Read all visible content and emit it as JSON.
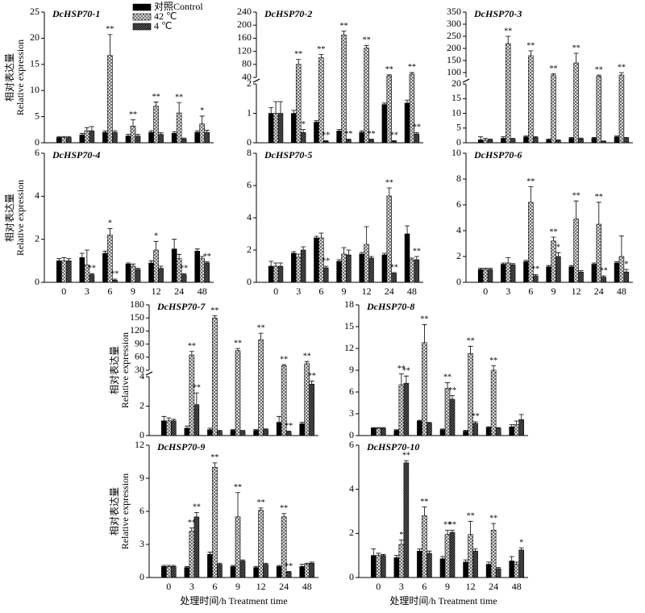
{
  "legend": [
    {
      "name": "对照Control",
      "color": "#000000",
      "pattern": "solid"
    },
    {
      "name": "42 ℃",
      "color": "#888888",
      "pattern": "crosshatch"
    },
    {
      "name": "4 ℃",
      "color": "#333333",
      "pattern": "dense"
    }
  ],
  "chart_data": [
    {
      "type": "bar",
      "title": "DcHSP70-1",
      "ylabel": "相对表达量",
      "ylabel2": "Relative expression",
      "categories": [
        null,
        null,
        null,
        null,
        null,
        null,
        null
      ],
      "ylim": [
        0,
        25
      ],
      "yticks": [
        0,
        5,
        10,
        15,
        20,
        25
      ],
      "series": [
        {
          "values": [
            1,
            1.5,
            2,
            1.3,
            2,
            1.8,
            2
          ],
          "errors": [
            0.2,
            0.3,
            0.3,
            0.3,
            0.3,
            0.3,
            0.3
          ],
          "stars": [
            null,
            null,
            null,
            null,
            null,
            null,
            null
          ]
        },
        {
          "values": [
            1,
            2.3,
            16.7,
            3.2,
            7,
            5.7,
            3.6
          ],
          "errors": [
            0.2,
            0.6,
            4,
            1.2,
            0.8,
            2,
            1.5
          ],
          "stars": [
            null,
            null,
            "**",
            "**",
            "**",
            "**",
            "*"
          ]
        },
        {
          "values": [
            1,
            2.3,
            2,
            1.3,
            1.6,
            0.7,
            2
          ],
          "errors": [
            0.2,
            0.8,
            0.3,
            0.3,
            0.3,
            0.2,
            0.4
          ],
          "stars": [
            null,
            null,
            null,
            null,
            null,
            null,
            null
          ]
        }
      ]
    },
    {
      "type": "bar",
      "title": "DcHSP70-2",
      "categories": [
        null,
        null,
        null,
        null,
        null,
        null,
        null
      ],
      "ylim": [
        0,
        2
      ],
      "yticks": [
        0,
        1,
        2
      ],
      "break": {
        "ylim": [
          40,
          240
        ],
        "yticks": [
          40,
          80,
          120,
          160,
          200,
          240
        ]
      },
      "series": [
        {
          "values": [
            1,
            1,
            0.7,
            0.4,
            0.35,
            1.3,
            1.35
          ],
          "errors": [
            0.2,
            0.1,
            0.05,
            0.05,
            0.05,
            0.05,
            0.1
          ],
          "stars": [
            null,
            null,
            null,
            null,
            null,
            null,
            null
          ]
        },
        {
          "values": [
            1,
            80,
            100,
            170,
            130,
            45,
            50
          ],
          "errors": [
            0.4,
            15,
            10,
            12,
            8,
            3,
            5
          ],
          "stars": [
            null,
            "**",
            "**",
            "**",
            "**",
            "**",
            "**"
          ]
        },
        {
          "values": [
            1,
            0.35,
            0.05,
            0.1,
            0.1,
            0.05,
            0.3
          ],
          "errors": [
            0.4,
            0.1,
            0.02,
            0.02,
            0.02,
            0.02,
            0.05
          ],
          "stars": [
            null,
            "*",
            "**",
            "**",
            "**",
            "**",
            "**"
          ]
        }
      ]
    },
    {
      "type": "bar",
      "title": "DcHSP70-3",
      "categories": [
        null,
        null,
        null,
        null,
        null,
        null,
        null
      ],
      "ylim": [
        0,
        20
      ],
      "yticks": [
        0,
        5,
        10,
        15,
        20
      ],
      "break": {
        "ylim": [
          80,
          350
        ],
        "yticks": [
          100,
          150,
          200,
          250,
          300,
          350
        ]
      },
      "series": [
        {
          "values": [
            1,
            1.5,
            2,
            1,
            1.5,
            1.5,
            2
          ],
          "errors": [
            1,
            0.5,
            0.3,
            0.3,
            0.3,
            0.3,
            0.3
          ],
          "stars": [
            null,
            null,
            null,
            null,
            null,
            null,
            null
          ]
        },
        {
          "values": [
            1,
            220,
            170,
            90,
            140,
            85,
            90
          ],
          "errors": [
            0.5,
            30,
            20,
            5,
            40,
            5,
            10
          ],
          "stars": [
            null,
            "**",
            "**",
            "**",
            "**",
            "**",
            "**"
          ]
        },
        {
          "values": [
            1,
            1.2,
            1.8,
            0.8,
            1.3,
            0.5,
            1.5
          ],
          "errors": [
            0.3,
            0.3,
            0.3,
            0.2,
            0.3,
            0.1,
            0.3
          ],
          "stars": [
            null,
            null,
            null,
            null,
            null,
            null,
            null
          ]
        }
      ]
    },
    {
      "type": "bar",
      "title": "DcHSP70-4",
      "ylabel": "相对表达量",
      "ylabel2": "Relative expression",
      "categories": [
        "0",
        "3",
        "6",
        "9",
        "12",
        "24",
        "48"
      ],
      "ylim": [
        0,
        6
      ],
      "yticks": [
        0,
        2,
        4,
        6
      ],
      "series": [
        {
          "values": [
            1,
            1.15,
            1.35,
            0.85,
            0.9,
            1.55,
            1.45
          ],
          "errors": [
            0.1,
            0.2,
            0.1,
            0.05,
            0.1,
            0.45,
            0.1
          ],
          "stars": [
            null,
            null,
            null,
            null,
            null,
            null,
            null
          ]
        },
        {
          "values": [
            1,
            0.8,
            2.2,
            0.75,
            1.5,
            1.1,
            1.1
          ],
          "errors": [
            0.15,
            0.7,
            0.3,
            0.1,
            0.4,
            0.2,
            0.1
          ],
          "stars": [
            null,
            null,
            "*",
            null,
            "*",
            null,
            null
          ]
        },
        {
          "values": [
            1,
            0.35,
            0.1,
            0.6,
            0.65,
            0.35,
            0.9
          ],
          "errors": [
            0.1,
            0.05,
            0.05,
            0.05,
            0.1,
            0.05,
            0.05
          ],
          "stars": [
            null,
            "**",
            "**",
            null,
            null,
            "**",
            "**"
          ]
        }
      ]
    },
    {
      "type": "bar",
      "title": "DcHSP70-5",
      "categories": [
        "0",
        "3",
        "6",
        "9",
        "12",
        "24",
        "48"
      ],
      "ylim": [
        0,
        8
      ],
      "yticks": [
        0,
        2,
        4,
        6,
        8
      ],
      "series": [
        {
          "values": [
            1,
            1.8,
            2.75,
            1.3,
            1.75,
            1.7,
            3
          ],
          "errors": [
            0.3,
            0.1,
            0.1,
            0.1,
            0.1,
            0.1,
            0.5
          ],
          "stars": [
            null,
            null,
            null,
            null,
            null,
            null,
            null
          ]
        },
        {
          "values": [
            1,
            1.55,
            2.75,
            1.75,
            2.35,
            5.35,
            1.4
          ],
          "errors": [
            0.2,
            0.2,
            0.3,
            0.4,
            1.1,
            0.5,
            0.1
          ],
          "stars": [
            null,
            null,
            null,
            null,
            null,
            "**",
            null
          ]
        },
        {
          "values": [
            1,
            2,
            0.9,
            1.7,
            1.5,
            0.55,
            1.4
          ],
          "errors": [
            0.2,
            0.2,
            0.1,
            0.3,
            0.1,
            0.05,
            0.2
          ],
          "stars": [
            null,
            null,
            "**",
            null,
            null,
            "**",
            "**"
          ]
        }
      ]
    },
    {
      "type": "bar",
      "title": "DcHSP70-6",
      "categories": [
        "0",
        "3",
        "6",
        "9",
        "12",
        "24",
        "48"
      ],
      "ylim": [
        0,
        10
      ],
      "yticks": [
        0,
        2,
        4,
        6,
        8,
        10
      ],
      "series": [
        {
          "values": [
            1,
            1.4,
            1.6,
            1.2,
            1.2,
            1.4,
            1.5
          ],
          "errors": [
            0.1,
            0.1,
            0.1,
            0.1,
            0.1,
            0.1,
            0.1
          ],
          "stars": [
            null,
            null,
            null,
            null,
            null,
            null,
            null
          ]
        },
        {
          "values": [
            1,
            1.5,
            6.2,
            3.2,
            4.9,
            4.5,
            2
          ],
          "errors": [
            0.1,
            0.4,
            1.2,
            0.3,
            1.4,
            1.7,
            1.6
          ],
          "stars": [
            null,
            null,
            "**",
            "**",
            "**",
            "**",
            null
          ]
        },
        {
          "values": [
            1,
            1.35,
            0.5,
            2,
            0.8,
            0.4,
            0.8
          ],
          "errors": [
            0.1,
            0.1,
            0.1,
            0.3,
            0.1,
            0.1,
            0.2
          ],
          "stars": [
            null,
            null,
            "**",
            "*",
            null,
            "**",
            "*"
          ]
        }
      ]
    },
    {
      "type": "bar",
      "title": "DcHSP70-7",
      "ylabel": "相对表达量",
      "ylabel2": "Relative expression",
      "categories": [
        null,
        null,
        null,
        null,
        null,
        null,
        null
      ],
      "ylim": [
        0,
        4
      ],
      "yticks": [
        0,
        2,
        4
      ],
      "break": {
        "ylim": [
          30,
          180
        ],
        "yticks": [
          30,
          60,
          90,
          120,
          150,
          180
        ]
      },
      "series": [
        {
          "values": [
            1,
            0.5,
            0.4,
            0.35,
            0.35,
            0.9,
            0.8
          ],
          "errors": [
            0.3,
            0.15,
            0.1,
            0.05,
            0.05,
            0.4,
            0.1
          ],
          "stars": [
            null,
            null,
            null,
            null,
            null,
            null,
            null
          ]
        },
        {
          "values": [
            1,
            65,
            150,
            75,
            100,
            40,
            45
          ],
          "errors": [
            0.2,
            8,
            5,
            5,
            15,
            3,
            5
          ],
          "stars": [
            null,
            "**",
            "**",
            "**",
            "**",
            "**",
            "**"
          ]
        },
        {
          "values": [
            1,
            2.1,
            0.3,
            0.3,
            0.4,
            0.25,
            3.5
          ],
          "errors": [
            0.1,
            0.8,
            0.05,
            0.05,
            0.05,
            0.05,
            0.2
          ],
          "stars": [
            null,
            "**",
            null,
            null,
            null,
            "**",
            "**"
          ]
        }
      ]
    },
    {
      "type": "bar",
      "title": "DcHSP70-8",
      "categories": [
        null,
        null,
        null,
        null,
        null,
        null,
        null
      ],
      "ylim": [
        0,
        18
      ],
      "yticks": [
        0,
        3,
        6,
        9,
        12,
        15,
        18
      ],
      "series": [
        {
          "values": [
            1,
            0.7,
            2,
            0.8,
            0.6,
            1.1,
            1.2
          ],
          "errors": [
            0.1,
            0.1,
            0.1,
            0.1,
            0.1,
            0.1,
            0.3
          ],
          "stars": [
            null,
            null,
            null,
            null,
            null,
            null,
            null
          ]
        },
        {
          "values": [
            1,
            7,
            12.8,
            6.5,
            11.3,
            9,
            1.5
          ],
          "errors": [
            0.1,
            1.5,
            2.5,
            0.8,
            1,
            0.6,
            0.5
          ],
          "stars": [
            null,
            "**",
            "**",
            "**",
            "**",
            "**",
            null
          ]
        },
        {
          "values": [
            1,
            7.2,
            1.7,
            5,
            1.7,
            1,
            2.2
          ],
          "errors": [
            0.1,
            1,
            0.1,
            0.5,
            0.2,
            0.1,
            0.7
          ],
          "stars": [
            null,
            "**",
            null,
            "**",
            "**",
            null,
            null
          ]
        }
      ]
    },
    {
      "type": "bar",
      "title": "DcHSP70-9",
      "ylabel": "相对表达量",
      "ylabel2": "Relative expression",
      "xlabel": "处理时间/h  Treatment time",
      "categories": [
        "0",
        "3",
        "6",
        "9",
        "12",
        "24",
        "48"
      ],
      "ylim": [
        0,
        12
      ],
      "yticks": [
        0,
        3,
        6,
        9,
        12
      ],
      "series": [
        {
          "values": [
            1,
            0.9,
            2.1,
            1,
            0.9,
            1,
            1
          ],
          "errors": [
            0.1,
            0.1,
            0.2,
            0.1,
            0.1,
            0.1,
            0.2
          ],
          "stars": [
            null,
            null,
            null,
            null,
            null,
            null,
            null
          ]
        },
        {
          "values": [
            1,
            4.2,
            10,
            5.5,
            6.1,
            5.5,
            1.2
          ],
          "errors": [
            0.1,
            0.3,
            0.4,
            2.2,
            0.2,
            0.3,
            0.1
          ],
          "stars": [
            null,
            "**",
            "**",
            "**",
            "**",
            "**",
            null
          ]
        },
        {
          "values": [
            1,
            5.5,
            1.2,
            1.5,
            1.2,
            0.5,
            1.3
          ],
          "errors": [
            0.1,
            0.4,
            0.1,
            0.1,
            0.1,
            0.05,
            0.1
          ],
          "stars": [
            null,
            "**",
            null,
            null,
            null,
            "**",
            null
          ]
        }
      ]
    },
    {
      "type": "bar",
      "title": "DcHSP70-10",
      "xlabel": "处理时间/h  Treatment time",
      "categories": [
        "0",
        "3",
        "6",
        "9",
        "12",
        "24",
        "48"
      ],
      "ylim": [
        0,
        6
      ],
      "yticks": [
        0,
        2,
        4,
        6
      ],
      "series": [
        {
          "values": [
            1,
            0.9,
            1.2,
            0.85,
            0.7,
            0.6,
            0.75
          ],
          "errors": [
            0.3,
            0.1,
            0.1,
            0.1,
            0.1,
            0.1,
            0.2
          ],
          "stars": [
            null,
            null,
            null,
            null,
            null,
            null,
            null
          ]
        },
        {
          "values": [
            1,
            1.5,
            2.8,
            1.95,
            1.95,
            2.15,
            0.6
          ],
          "errors": [
            0.1,
            0.2,
            0.4,
            0.2,
            0.6,
            0.3,
            0.1
          ],
          "stars": [
            null,
            "*",
            "**",
            "**",
            "**",
            "**",
            null
          ]
        },
        {
          "values": [
            1,
            5.2,
            1.1,
            2.05,
            1.2,
            0.4,
            1.25
          ],
          "errors": [
            0.05,
            0.1,
            0.1,
            0.1,
            0.1,
            0.05,
            0.1
          ],
          "stars": [
            null,
            "**",
            null,
            "**",
            null,
            null,
            "*"
          ]
        }
      ]
    }
  ]
}
